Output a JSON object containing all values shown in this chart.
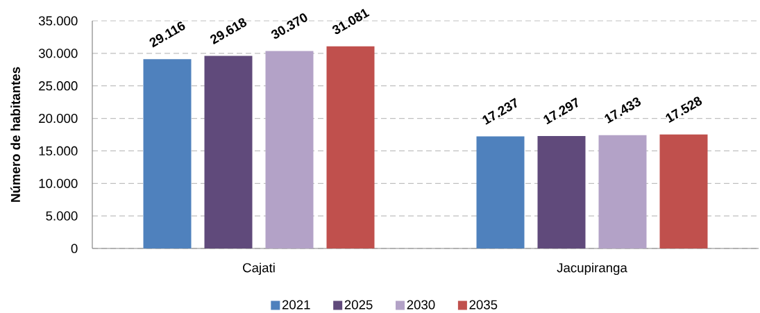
{
  "chart_data": {
    "type": "bar",
    "ylabel": "Número de habitantes",
    "categories": [
      "Cajati",
      "Jacupiranga"
    ],
    "series": [
      {
        "name": "2021",
        "color": "#4f81bd",
        "values": [
          29116,
          17237
        ],
        "value_labels": [
          "29.116",
          "17.237"
        ]
      },
      {
        "name": "2025",
        "color": "#604a7b",
        "values": [
          29618,
          17297
        ],
        "value_labels": [
          "29.618",
          "17.297"
        ]
      },
      {
        "name": "2030",
        "color": "#b3a2c7",
        "values": [
          30370,
          17433
        ],
        "value_labels": [
          "30.370",
          "17.433"
        ]
      },
      {
        "name": "2035",
        "color": "#c0504d",
        "values": [
          31081,
          17528
        ],
        "value_labels": [
          "31.081",
          "17.528"
        ]
      }
    ],
    "ylim": [
      0,
      35000
    ],
    "yticks": [
      0,
      {
        "value": 5000,
        "label": "5.000"
      },
      {
        "value": 10000,
        "label": "10.000"
      },
      {
        "value": 15000,
        "label": "15.000"
      },
      {
        "value": 20000,
        "label": "20.000"
      },
      {
        "value": 25000,
        "label": "25.000"
      },
      {
        "value": 30000,
        "label": "30.000"
      },
      {
        "value": 35000,
        "label": "35.000"
      }
    ],
    "grid": "y",
    "legend": "bottom"
  }
}
